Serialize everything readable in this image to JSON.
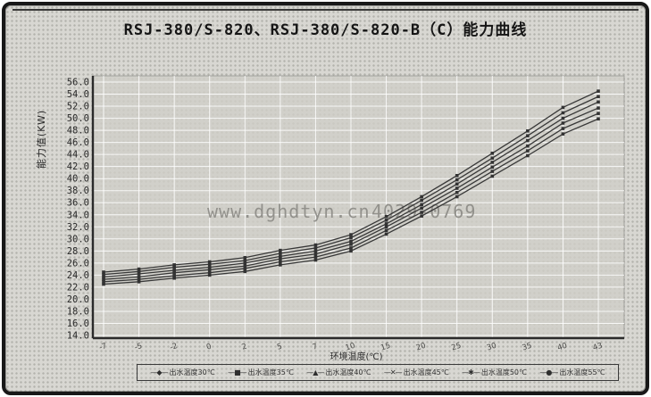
{
  "page": {
    "title": "RSJ-380/S-820、RSJ-380/S-820-B（C）能力曲线"
  },
  "watermark": {
    "left": "www.dghdtyn.cn",
    "right": "4029-0769"
  },
  "chart_data": {
    "type": "line",
    "title": "RSJ-380/S-820、RSJ-380/S-820-B（C）能力曲线",
    "xlabel": "环境温度(℃)",
    "ylabel": "能力值(KW)",
    "x_ticks": [
      -7,
      -5,
      -2,
      0,
      2,
      5,
      7,
      10,
      15,
      20,
      25,
      30,
      35,
      40,
      43
    ],
    "ylim": [
      14,
      56
    ],
    "y_step": 2,
    "grid": true,
    "legend_position": "bottom",
    "marker_glyphs": [
      "◆",
      "■",
      "▲",
      "✕",
      "✱",
      "●"
    ],
    "series": [
      {
        "name": "出水温度30℃",
        "values": [
          24.5,
          25.0,
          25.7,
          26.2,
          26.9,
          28.1,
          29.0,
          30.7,
          33.7,
          37.0,
          40.5,
          44.2,
          47.9,
          51.8,
          54.5
        ]
      },
      {
        "name": "出水温度35℃",
        "values": [
          24.1,
          24.6,
          25.3,
          25.8,
          26.4,
          27.6,
          28.5,
          30.2,
          33.1,
          36.4,
          39.8,
          43.4,
          47.1,
          50.9,
          53.6
        ]
      },
      {
        "name": "出水温度40℃",
        "values": [
          23.7,
          24.2,
          24.8,
          25.3,
          26.0,
          27.1,
          28.0,
          29.6,
          32.5,
          35.7,
          39.1,
          42.7,
          46.3,
          50.0,
          52.7
        ]
      },
      {
        "name": "出水温度45℃",
        "values": [
          23.3,
          23.7,
          24.4,
          24.9,
          25.5,
          26.7,
          27.5,
          29.1,
          32.0,
          35.1,
          38.4,
          41.9,
          45.4,
          49.2,
          51.7
        ]
      },
      {
        "name": "出水温度50℃",
        "values": [
          22.9,
          23.3,
          23.9,
          24.4,
          25.1,
          26.2,
          27.0,
          28.5,
          31.4,
          34.4,
          37.7,
          41.2,
          44.6,
          48.3,
          50.8
        ]
      },
      {
        "name": "出水温度55℃",
        "values": [
          22.5,
          22.9,
          23.5,
          24.0,
          24.6,
          25.7,
          26.5,
          28.0,
          30.8,
          33.8,
          37.0,
          40.4,
          43.8,
          47.4,
          49.9
        ]
      }
    ]
  },
  "colors": {
    "paper": "#d8d7d2",
    "plot_bg": "#cfcec8",
    "grid": "#ffffff",
    "curve": "#383838",
    "frame": "#181818",
    "watermark": "#8e8d88",
    "text": "#2a2a2a"
  }
}
